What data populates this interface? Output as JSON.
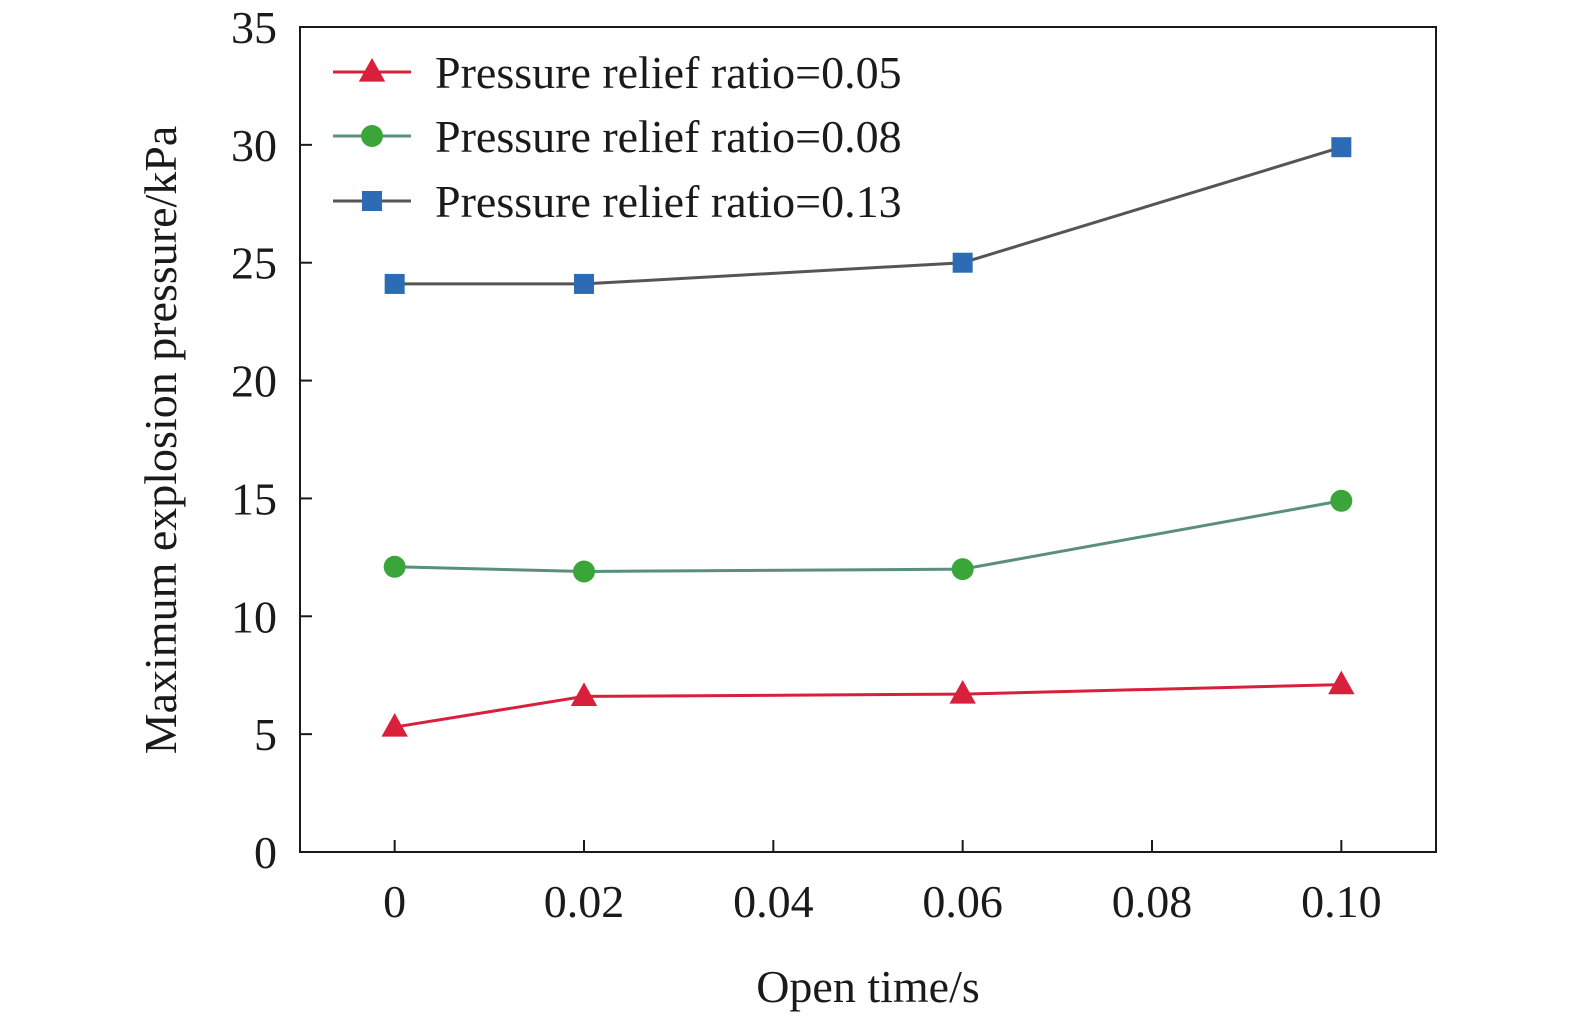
{
  "chart_data": {
    "type": "line",
    "title": "",
    "xlabel": "Open time/s",
    "ylabel": "Maximum explosion pressure/kPa",
    "xlim": [
      -0.01,
      0.11
    ],
    "ylim": [
      0,
      35
    ],
    "x_ticks": [
      "0",
      "0.02",
      "0.04",
      "0.06",
      "0.08",
      "0.10"
    ],
    "x_tick_values": [
      0,
      0.02,
      0.04,
      0.06,
      0.08,
      0.1
    ],
    "y_ticks": [
      "0",
      "5",
      "10",
      "15",
      "20",
      "25",
      "30",
      "35"
    ],
    "y_tick_values": [
      0,
      5,
      10,
      15,
      20,
      25,
      30,
      35
    ],
    "grid": false,
    "legend_position": "top-left",
    "series": [
      {
        "name": "Pressure relief ratio=0.05",
        "marker": "triangle",
        "color": "#d81f3c",
        "line_color": "#d81f3c",
        "x": [
          0,
          0.02,
          0.06,
          0.1
        ],
        "y": [
          5.3,
          6.6,
          6.7,
          7.1
        ]
      },
      {
        "name": "Pressure relief ratio=0.08",
        "marker": "circle",
        "color": "#3aa63a",
        "line_color": "#5a8f7a",
        "x": [
          0,
          0.02,
          0.06,
          0.1
        ],
        "y": [
          12.1,
          11.9,
          12.0,
          14.9
        ]
      },
      {
        "name": "Pressure relief ratio=0.13",
        "marker": "square",
        "color": "#2e6bb5",
        "line_color": "#555555",
        "x": [
          0,
          0.02,
          0.06,
          0.1
        ],
        "y": [
          24.1,
          24.1,
          25.0,
          29.9
        ]
      }
    ]
  }
}
